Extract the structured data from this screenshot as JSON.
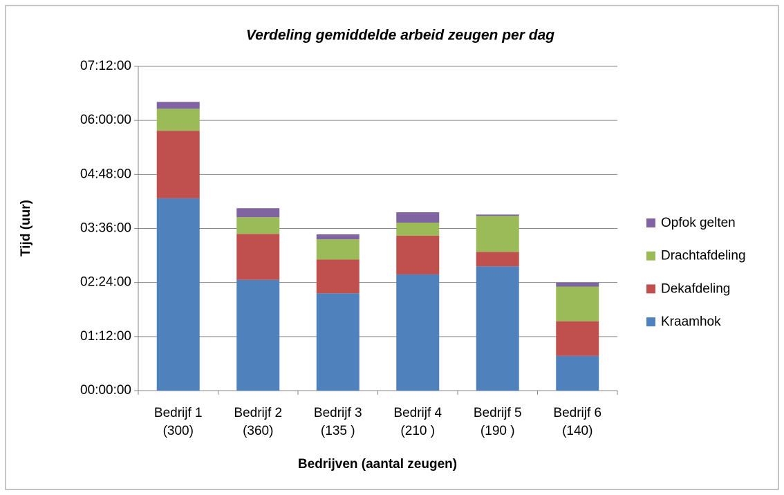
{
  "chart_data": {
    "type": "stacked_bar",
    "title": "Verdeling gemiddelde arbeid zeugen per dag",
    "x_label": "Bedrijven (aantal zeugen)",
    "y_label": "Tijd (uur)",
    "categories": [
      "Bedrijf 1\n(300)",
      "Bedrijf 2\n(360)",
      "Bedrijf 3\n(135 )",
      "Bedrijf 4\n(210 )",
      "Bedrijf 5\n(190 )",
      "Bedrijf 6\n(140)"
    ],
    "series": [
      {
        "name": "Kraamhok",
        "color": "#4f81bd",
        "values": [
          4.27,
          2.46,
          2.16,
          2.58,
          2.76,
          0.77
        ]
      },
      {
        "name": "Dekafdeling",
        "color": "#c0504d",
        "values": [
          1.5,
          1.02,
          0.75,
          0.86,
          0.32,
          0.77
        ]
      },
      {
        "name": "Drachtafdeling",
        "color": "#9bbb59",
        "values": [
          0.49,
          0.37,
          0.45,
          0.29,
          0.8,
          0.77
        ]
      },
      {
        "name": "Opfok gelten",
        "color": "#8064a2",
        "values": [
          0.15,
          0.2,
          0.11,
          0.23,
          0.03,
          0.09
        ]
      }
    ],
    "ylim": [
      0,
      7.2
    ],
    "yticks": [
      {
        "value": 0,
        "label": "00:00:00"
      },
      {
        "value": 1.2,
        "label": "01:12:00"
      },
      {
        "value": 2.4,
        "label": "02:24:00"
      },
      {
        "value": 3.6,
        "label": "03:36:00"
      },
      {
        "value": 4.8,
        "label": "04:48:00"
      },
      {
        "value": 6,
        "label": "06:00:00"
      },
      {
        "value": 7.2,
        "label": "07:12:00"
      }
    ],
    "grid": true,
    "legend": "right"
  }
}
